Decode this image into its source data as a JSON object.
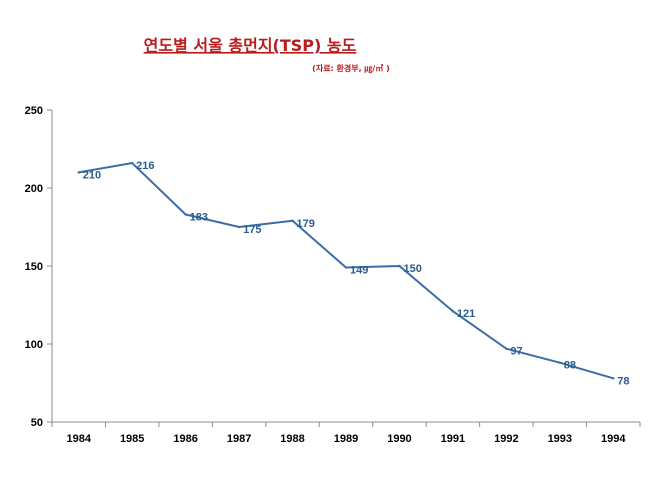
{
  "title": "연도별 서울 총먼지(TSP) 농도",
  "subtitle": "(자료: 환경부, ㎍/㎥ )",
  "chart_data": {
    "type": "line",
    "title": "연도별 서울 총먼지(TSP) 농도",
    "subtitle": "(자료: 환경부, ㎍/㎥ )",
    "xlabel": "",
    "ylabel": "",
    "categories": [
      "1984",
      "1985",
      "1986",
      "1987",
      "1988",
      "1989",
      "1990",
      "1991",
      "1992",
      "1993",
      "1994"
    ],
    "series": [
      {
        "values": [
          210,
          216,
          183,
          175,
          179,
          149,
          150,
          121,
          97,
          88,
          78
        ],
        "color": "#3a6ea5"
      }
    ],
    "data_labels": [
      "210",
      "216",
      "183",
      "175",
      "179",
      "149",
      "150",
      "121",
      "97",
      "88",
      "78"
    ],
    "ylim": [
      50,
      250
    ],
    "yticks": [
      "50",
      "100",
      "150",
      "200",
      "250"
    ],
    "grid": false,
    "legend": "none",
    "colors": {
      "title": "#b91c1c",
      "line": "#3a6ea5",
      "label": "#2a5d8f"
    }
  }
}
